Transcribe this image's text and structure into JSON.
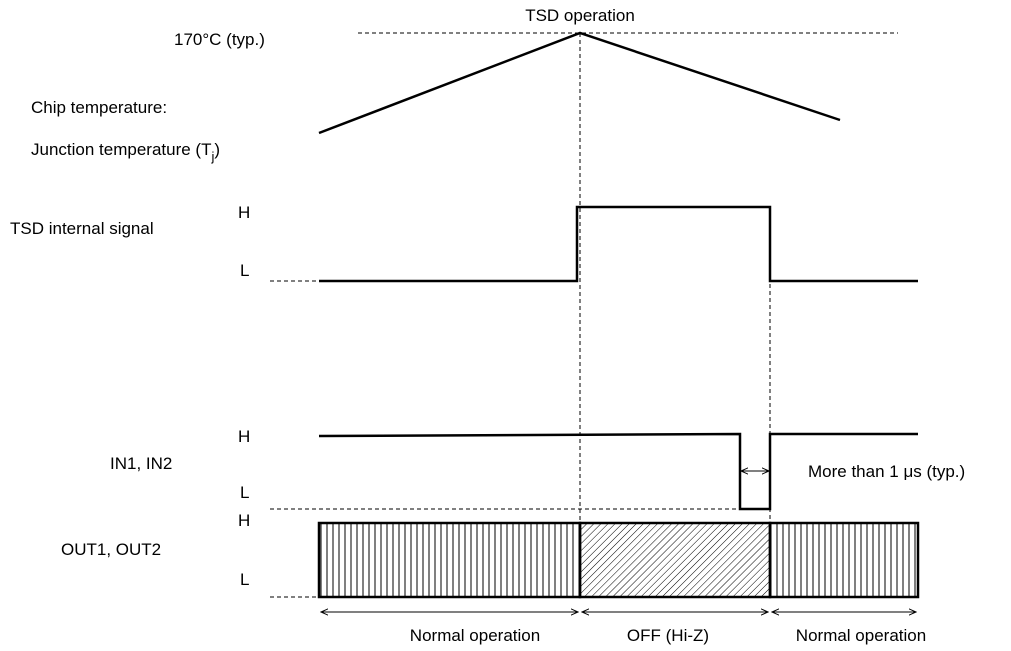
{
  "title": "TSD operation",
  "chip_temperature": {
    "peak_label": "170°C (typ.)",
    "label_line1": "Chip temperature:",
    "label_line2_prefix": "Junction temperature  (T",
    "label_line2_sub": "j",
    "label_line2_suffix": ")"
  },
  "tsd_signal": {
    "label": "TSD internal signal",
    "high": "H",
    "low": "L"
  },
  "inputs": {
    "label": "IN1, IN2",
    "high": "H",
    "low": "L",
    "pulse_note_prefix": "More than 1 ",
    "pulse_note_mu": "μ",
    "pulse_note_suffix": "s (typ.)"
  },
  "outputs": {
    "label": "OUT1, OUT2",
    "high": "H",
    "low": "L"
  },
  "phases": [
    {
      "label": "Normal operation"
    },
    {
      "label": "OFF (Hi-Z)"
    },
    {
      "label": "Normal operation"
    }
  ]
}
